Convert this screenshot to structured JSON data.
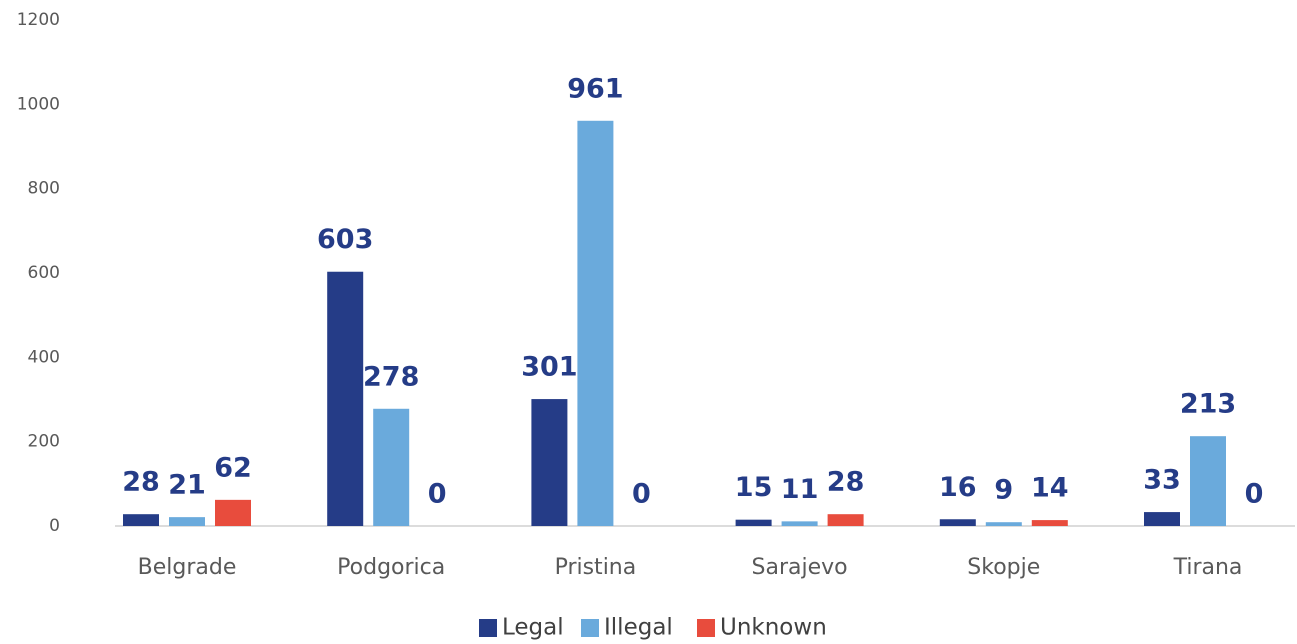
{
  "chart_data": {
    "type": "bar",
    "categories": [
      "Belgrade",
      "Podgorica",
      "Pristina",
      "Sarajevo",
      "Skopje",
      "Tirana"
    ],
    "series": [
      {
        "name": "Legal",
        "color": "#253c87",
        "values": [
          28,
          603,
          301,
          15,
          16,
          33
        ]
      },
      {
        "name": "Illegal",
        "color": "#6aaadc",
        "values": [
          21,
          278,
          961,
          11,
          9,
          213
        ]
      },
      {
        "name": "Unknown",
        "color": "#e84c3d",
        "values": [
          62,
          0,
          0,
          28,
          14,
          0
        ]
      }
    ],
    "ylim": [
      0,
      1200
    ],
    "yticks": [
      0,
      200,
      400,
      600,
      800,
      1000,
      1200
    ],
    "grid": false,
    "legend": "bottom"
  }
}
